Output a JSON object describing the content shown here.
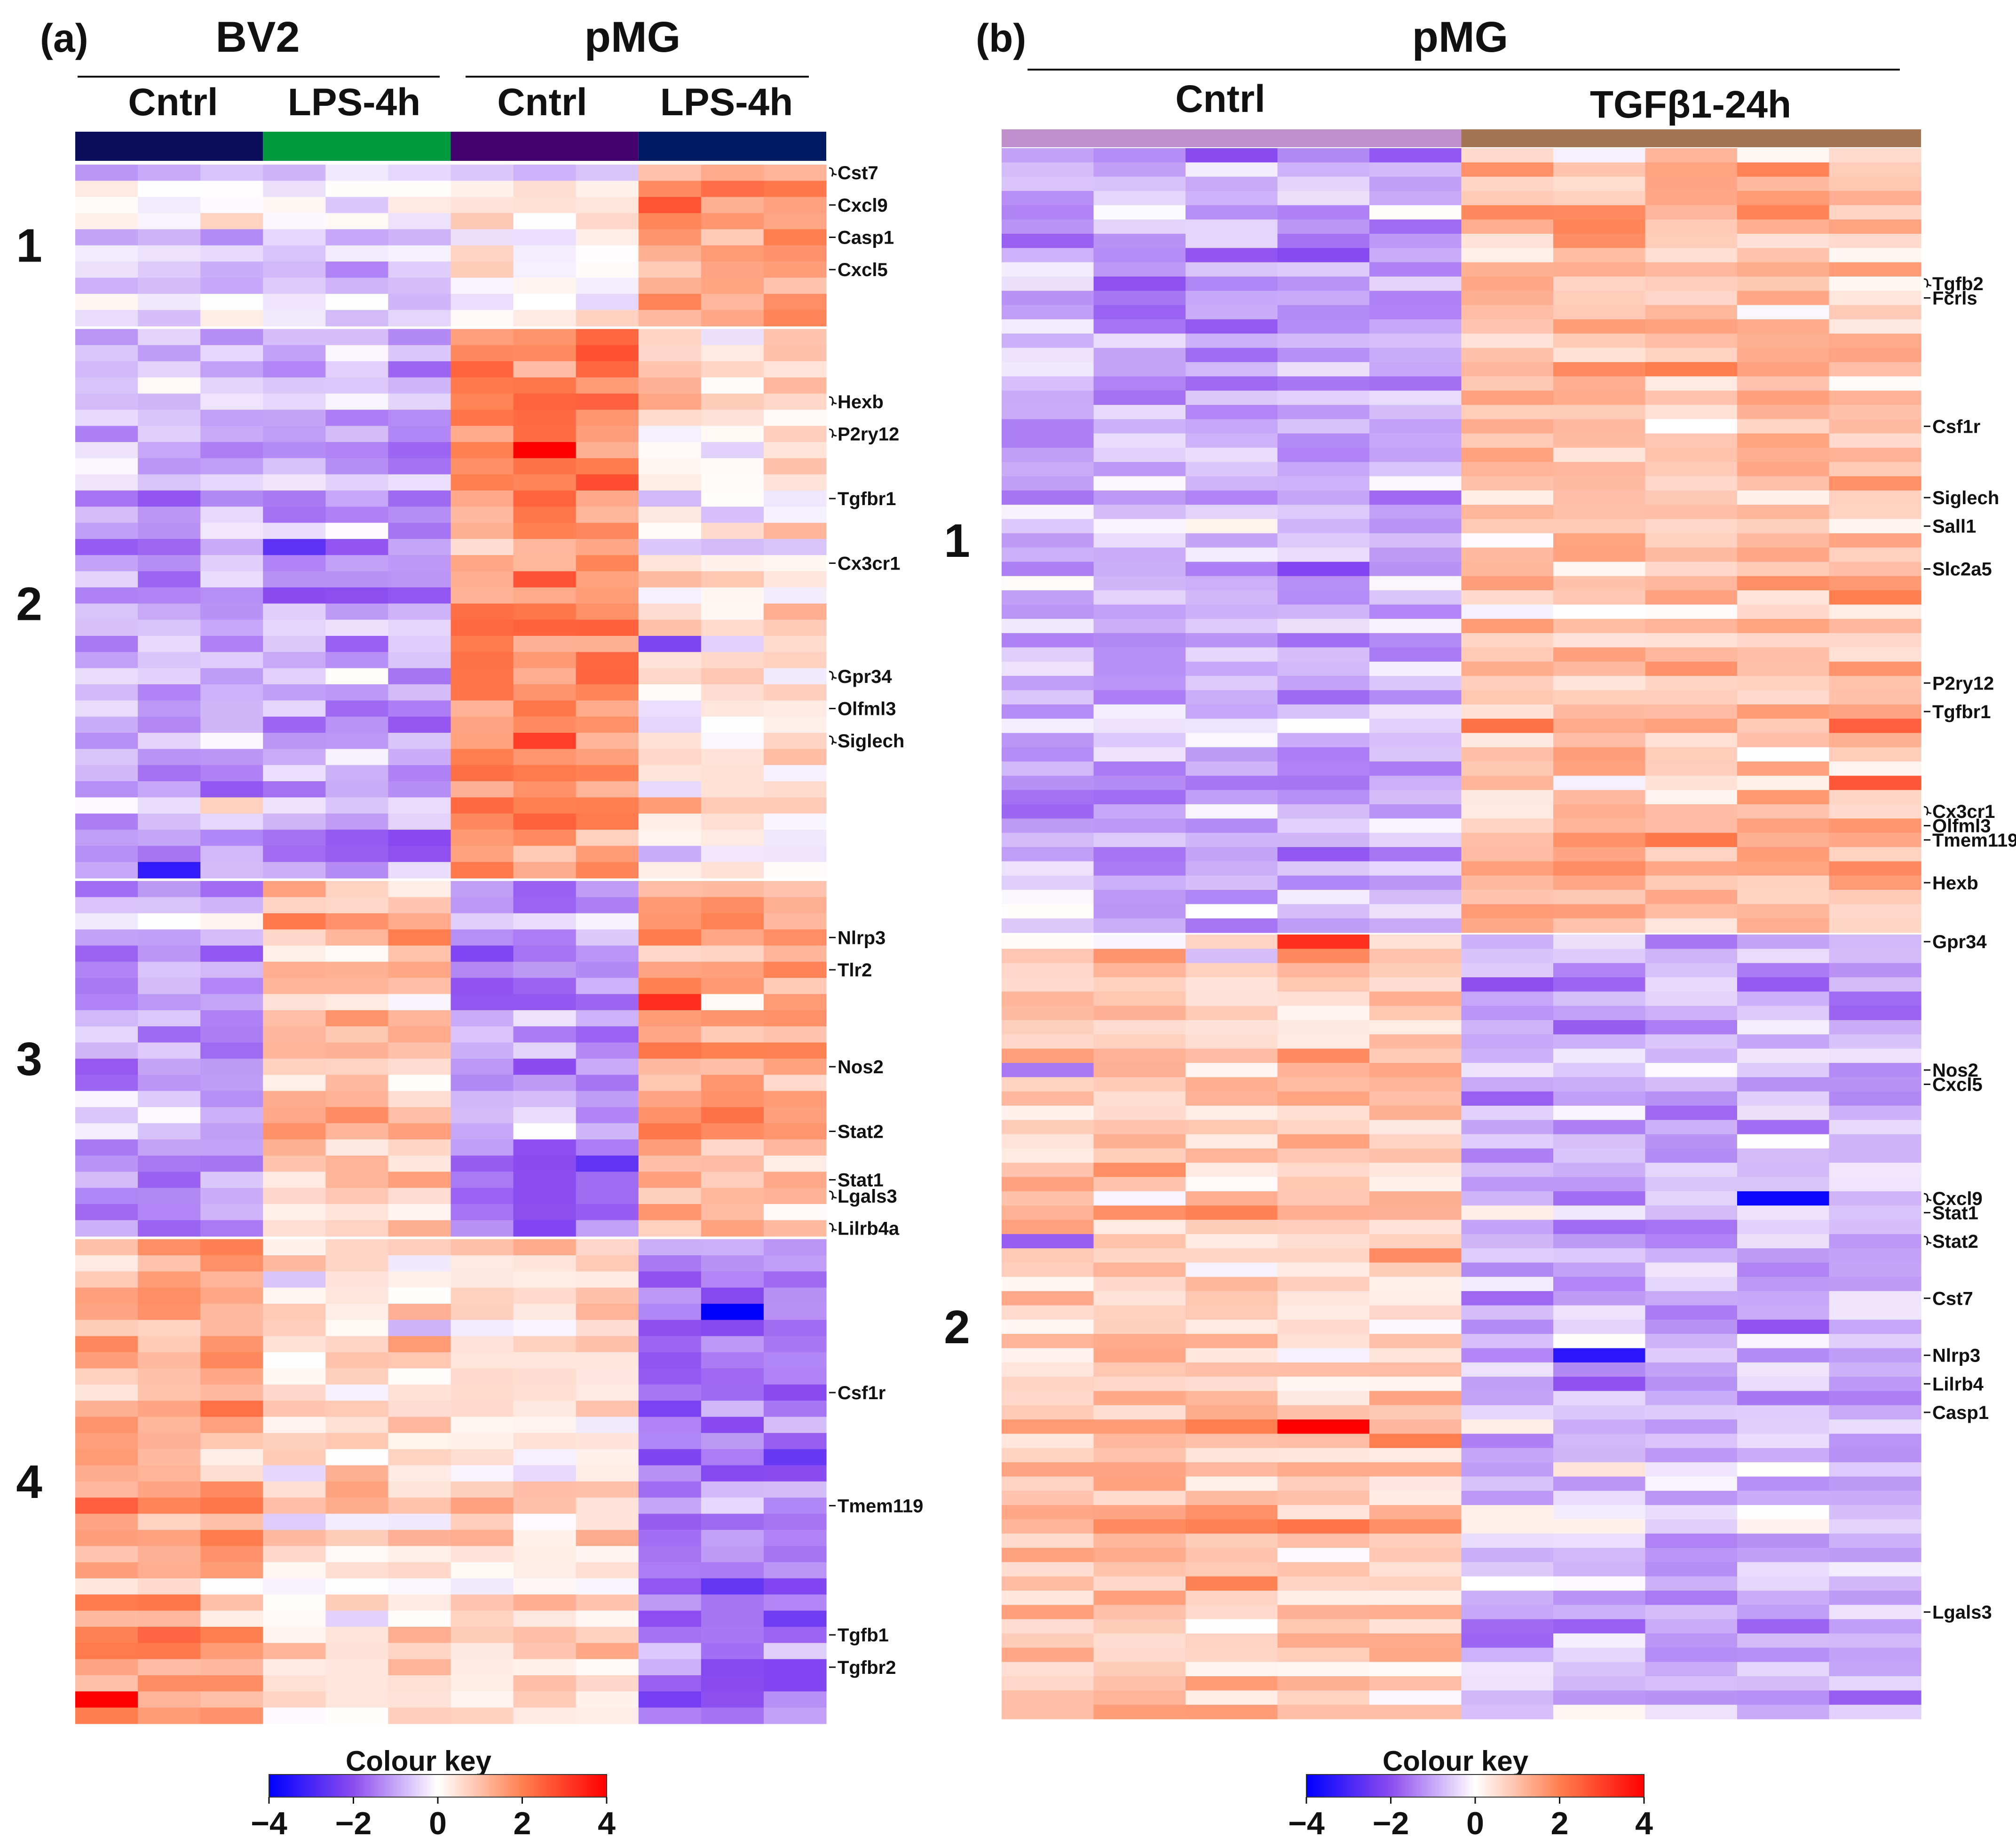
{
  "figure": {
    "panel_a_label": "(a)",
    "panel_b_label": "(b)"
  },
  "chart_data": [
    {
      "type": "heatmap",
      "panel": "(a)",
      "top_groups": [
        "BV2",
        "pMG"
      ],
      "conditions": [
        "Cntrl",
        "LPS-4h",
        "Cntrl",
        "LPS-4h"
      ],
      "condition_colors": [
        "#0d0d5e",
        "#009a3e",
        "#45006f",
        "#001b63"
      ],
      "replicates_per_condition": 3,
      "clusters": [
        {
          "label": "1",
          "rows": 10,
          "pattern": [
            -0.4,
            -0.4,
            0.1,
            1.6
          ]
        },
        {
          "label": "2",
          "rows": 34,
          "pattern": [
            -0.9,
            -1.1,
            1.8,
            0.3
          ]
        },
        {
          "label": "3",
          "rows": 22,
          "pattern": [
            -1.0,
            0.9,
            -1.3,
            1.2
          ]
        },
        {
          "label": "4",
          "rows": 30,
          "pattern": [
            1.3,
            0.4,
            0.5,
            -1.5
          ]
        }
      ],
      "gene_labels": [
        {
          "cluster": 0,
          "row": 0,
          "name": "Cst7",
          "style": "bracket"
        },
        {
          "cluster": 0,
          "row": 2,
          "name": "Cxcl9",
          "style": "dash"
        },
        {
          "cluster": 0,
          "row": 4,
          "name": "Casp1",
          "style": "dash"
        },
        {
          "cluster": 0,
          "row": 6,
          "name": "Cxcl5",
          "style": "dash"
        },
        {
          "cluster": 1,
          "row": 4,
          "name": "Hexb",
          "style": "bracket"
        },
        {
          "cluster": 1,
          "row": 6,
          "name": "P2ry12",
          "style": "bracket"
        },
        {
          "cluster": 1,
          "row": 10,
          "name": "Tgfbr1",
          "style": "dash"
        },
        {
          "cluster": 1,
          "row": 14,
          "name": "Cx3cr1",
          "style": "dash"
        },
        {
          "cluster": 1,
          "row": 21,
          "name": "Gpr34",
          "style": "bracket"
        },
        {
          "cluster": 1,
          "row": 23,
          "name": "Olfml3",
          "style": "dash"
        },
        {
          "cluster": 1,
          "row": 25,
          "name": "Siglech",
          "style": "bracket"
        },
        {
          "cluster": 2,
          "row": 3,
          "name": "Nlrp3",
          "style": "dash"
        },
        {
          "cluster": 2,
          "row": 5,
          "name": "Tlr2",
          "style": "dash"
        },
        {
          "cluster": 2,
          "row": 11,
          "name": "Nos2",
          "style": "dash"
        },
        {
          "cluster": 2,
          "row": 15,
          "name": "Stat2",
          "style": "dash"
        },
        {
          "cluster": 2,
          "row": 18,
          "name": "Stat1",
          "style": "dash"
        },
        {
          "cluster": 2,
          "row": 19,
          "name": "Lgals3",
          "style": "bracket"
        },
        {
          "cluster": 2,
          "row": 21,
          "name": "Lilrb4a",
          "style": "bracket"
        },
        {
          "cluster": 3,
          "row": 9,
          "name": "Csf1r",
          "style": "dash"
        },
        {
          "cluster": 3,
          "row": 16,
          "name": "Tmem119",
          "style": "dash"
        },
        {
          "cluster": 3,
          "row": 24,
          "name": "Tgfb1",
          "style": "dash"
        },
        {
          "cluster": 3,
          "row": 26,
          "name": "Tgfbr2",
          "style": "dash"
        }
      ],
      "colour_key": {
        "title": "Colour key",
        "ticks": [
          "−4",
          "−2",
          "0",
          "2",
          "4"
        ],
        "range": [
          -4,
          4
        ]
      }
    },
    {
      "type": "heatmap",
      "panel": "(b)",
      "top_groups": [
        "pMG"
      ],
      "conditions": [
        "Cntrl",
        "TGFβ1-24h"
      ],
      "condition_colors": [
        "#c090cc",
        "#a57452"
      ],
      "replicates_per_condition": 5,
      "clusters": [
        {
          "label": "1",
          "rows": 55,
          "pattern": [
            -0.9,
            1.0
          ]
        },
        {
          "label": "2",
          "rows": 55,
          "pattern": [
            0.9,
            -0.8
          ]
        }
      ],
      "gene_labels": [
        {
          "cluster": 0,
          "row": 9,
          "name": "Tgfb2",
          "style": "bracket"
        },
        {
          "cluster": 0,
          "row": 10,
          "name": "Fcrls",
          "style": "dash"
        },
        {
          "cluster": 0,
          "row": 19,
          "name": "Csf1r",
          "style": "dash"
        },
        {
          "cluster": 0,
          "row": 24,
          "name": "Siglech",
          "style": "dash"
        },
        {
          "cluster": 0,
          "row": 26,
          "name": "Sall1",
          "style": "dash"
        },
        {
          "cluster": 0,
          "row": 29,
          "name": "Slc2a5",
          "style": "dash"
        },
        {
          "cluster": 0,
          "row": 37,
          "name": "P2ry12",
          "style": "dash"
        },
        {
          "cluster": 0,
          "row": 39,
          "name": "Tgfbr1",
          "style": "dash"
        },
        {
          "cluster": 0,
          "row": 46,
          "name": "Cx3cr1",
          "style": "bracket"
        },
        {
          "cluster": 0,
          "row": 47,
          "name": "Olfml3",
          "style": "dash"
        },
        {
          "cluster": 0,
          "row": 48,
          "name": "Tmem119",
          "style": "dash"
        },
        {
          "cluster": 0,
          "row": 51,
          "name": "Hexb",
          "style": "dash"
        },
        {
          "cluster": 1,
          "row": 0,
          "name": "Gpr34",
          "style": "dash"
        },
        {
          "cluster": 1,
          "row": 9,
          "name": "Nos2",
          "style": "dash"
        },
        {
          "cluster": 1,
          "row": 10,
          "name": "Cxcl5",
          "style": "dash"
        },
        {
          "cluster": 1,
          "row": 18,
          "name": "Cxcl9",
          "style": "bracket"
        },
        {
          "cluster": 1,
          "row": 19,
          "name": "Stat1",
          "style": "dash"
        },
        {
          "cluster": 1,
          "row": 21,
          "name": "Stat2",
          "style": "bracket"
        },
        {
          "cluster": 1,
          "row": 25,
          "name": "Cst7",
          "style": "dash"
        },
        {
          "cluster": 1,
          "row": 29,
          "name": "Nlrp3",
          "style": "dash"
        },
        {
          "cluster": 1,
          "row": 31,
          "name": "Lilrb4",
          "style": "dash"
        },
        {
          "cluster": 1,
          "row": 33,
          "name": "Casp1",
          "style": "dash"
        },
        {
          "cluster": 1,
          "row": 47,
          "name": "Lgals3",
          "style": "dash"
        }
      ],
      "colour_key": {
        "title": "Colour key",
        "ticks": [
          "−4",
          "−2",
          "0",
          "2",
          "4"
        ],
        "range": [
          -4,
          4
        ]
      }
    }
  ]
}
